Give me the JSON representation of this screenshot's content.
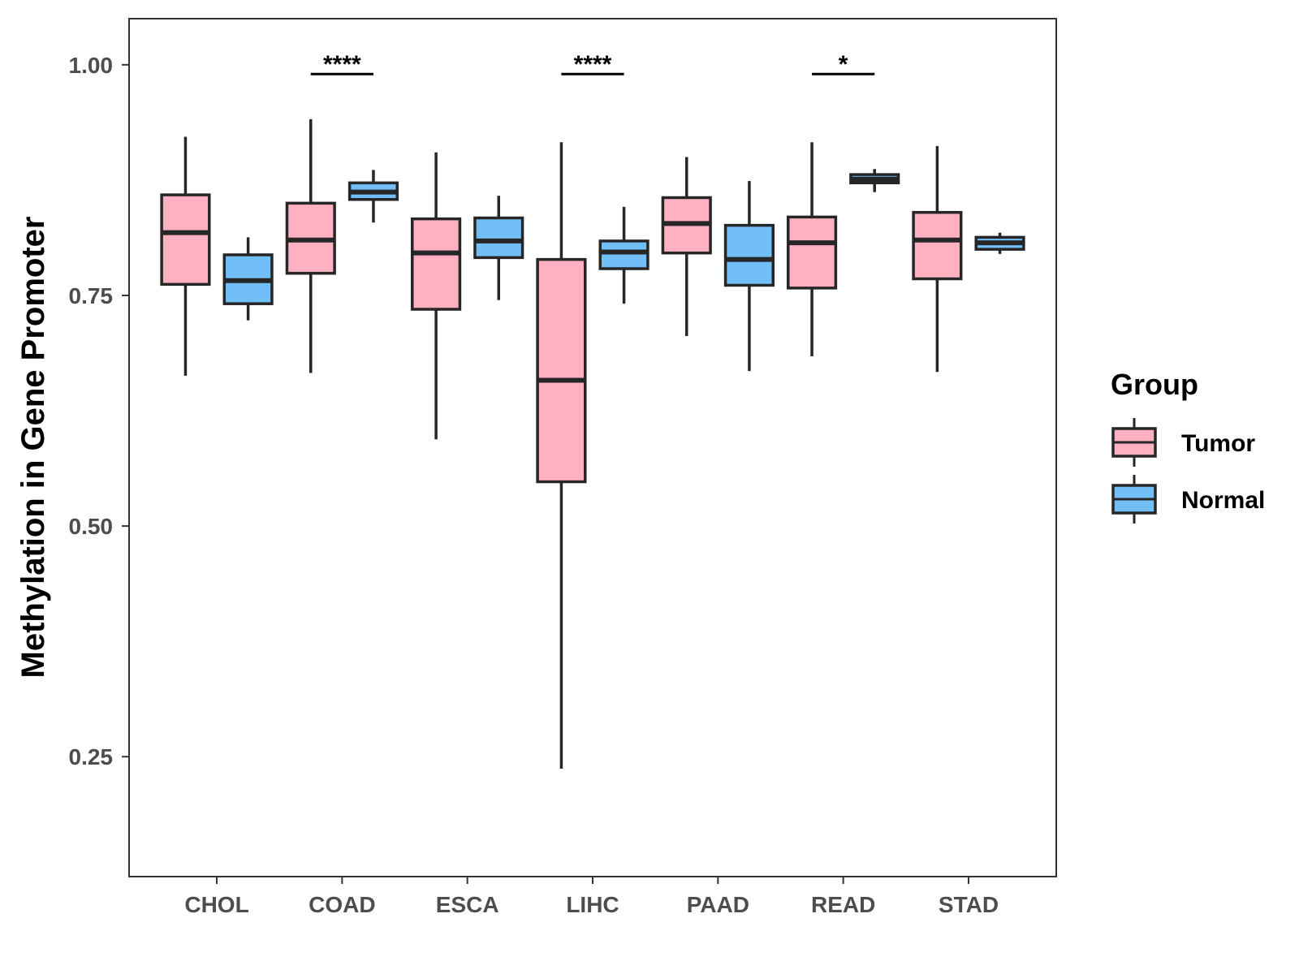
{
  "chart_data": {
    "type": "boxplot",
    "title": "",
    "xlabel": "",
    "ylabel": "Methylation in Gene Promoter",
    "ylim": [
      0.12,
      1.05
    ],
    "yticks": [
      0.25,
      0.5,
      0.75,
      1.0
    ],
    "ytick_labels": [
      "0.25",
      "0.50",
      "0.75",
      "1.00"
    ],
    "categories": [
      "CHOL",
      "COAD",
      "ESCA",
      "LIHC",
      "PAAD",
      "READ",
      "STAD"
    ],
    "legend": {
      "title": "Group",
      "position": "right",
      "entries": [
        {
          "name": "Tumor",
          "color": "#FFB0C1"
        },
        {
          "name": "Normal",
          "color": "#72BEF7"
        }
      ]
    },
    "series": [
      {
        "name": "Tumor",
        "color": "#FFB0C1",
        "boxes": [
          {
            "min": 0.663,
            "q1": 0.762,
            "median": 0.818,
            "q3": 0.859,
            "max": 0.922
          },
          {
            "min": 0.666,
            "q1": 0.774,
            "median": 0.81,
            "q3": 0.85,
            "max": 0.941
          },
          {
            "min": 0.594,
            "q1": 0.735,
            "median": 0.796,
            "q3": 0.833,
            "max": 0.905
          },
          {
            "min": 0.237,
            "q1": 0.548,
            "median": 0.658,
            "q3": 0.789,
            "max": 0.916
          },
          {
            "min": 0.706,
            "q1": 0.796,
            "median": 0.828,
            "q3": 0.856,
            "max": 0.9
          },
          {
            "min": 0.684,
            "q1": 0.758,
            "median": 0.807,
            "q3": 0.835,
            "max": 0.916
          },
          {
            "min": 0.667,
            "q1": 0.768,
            "median": 0.81,
            "q3": 0.84,
            "max": 0.912
          }
        ]
      },
      {
        "name": "Normal",
        "color": "#72BEF7",
        "boxes": [
          {
            "min": 0.723,
            "q1": 0.741,
            "median": 0.766,
            "q3": 0.794,
            "max": 0.813
          },
          {
            "min": 0.829,
            "q1": 0.854,
            "median": 0.862,
            "q3": 0.872,
            "max": 0.886
          },
          {
            "min": 0.745,
            "q1": 0.791,
            "median": 0.809,
            "q3": 0.834,
            "max": 0.858
          },
          {
            "min": 0.741,
            "q1": 0.779,
            "median": 0.797,
            "q3": 0.809,
            "max": 0.846
          },
          {
            "min": 0.668,
            "q1": 0.761,
            "median": 0.789,
            "q3": 0.826,
            "max": 0.874
          },
          {
            "min": 0.862,
            "q1": 0.872,
            "median": 0.876,
            "q3": 0.881,
            "max": 0.887
          },
          {
            "min": 0.795,
            "q1": 0.8,
            "median": 0.807,
            "q3": 0.813,
            "max": 0.818
          }
        ]
      }
    ],
    "significance": [
      {
        "category": "COAD",
        "label": "****",
        "y": 0.99
      },
      {
        "category": "LIHC",
        "label": "****",
        "y": 0.99
      },
      {
        "category": "READ",
        "label": "*",
        "y": 0.99
      }
    ]
  }
}
